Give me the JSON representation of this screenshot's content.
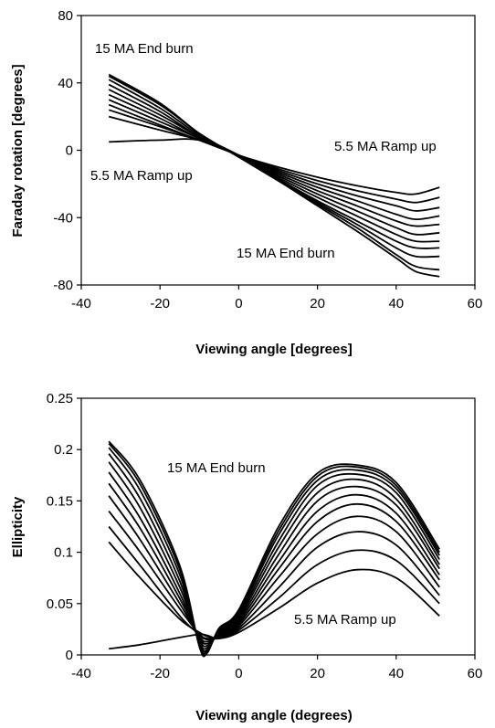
{
  "chart_data": [
    {
      "type": "line",
      "title": "",
      "xlabel": "Viewing angle [degrees]",
      "ylabel": "Faraday rotation [degrees]",
      "xlim": [
        -40,
        60
      ],
      "ylim": [
        -80,
        80
      ],
      "xticks": [
        -40,
        -20,
        0,
        20,
        40,
        60
      ],
      "yticks": [
        80,
        40,
        0,
        -40,
        -80
      ],
      "grid": false,
      "legend": "none",
      "annotations": [
        "15 MA End burn",
        "5.5 MA Ramp up",
        "5.5 MA Ramp up",
        "15 MA End burn"
      ],
      "series": [
        {
          "x": [
            -33,
            -20,
            -10,
            0,
            10,
            20,
            30,
            40,
            45,
            51
          ],
          "y": [
            5,
            6,
            6,
            -3,
            -10,
            -16,
            -21,
            -25,
            -26,
            -22
          ]
        },
        {
          "x": [
            -33,
            -20,
            -10,
            0,
            10,
            20,
            30,
            40,
            45,
            51
          ],
          "y": [
            20,
            12,
            6,
            -3,
            -11,
            -18,
            -24,
            -29,
            -31,
            -28
          ]
        },
        {
          "x": [
            -33,
            -20,
            -10,
            0,
            10,
            20,
            30,
            40,
            45,
            51
          ],
          "y": [
            24,
            14,
            6,
            -3,
            -12,
            -20,
            -27,
            -33,
            -36,
            -34
          ]
        },
        {
          "x": [
            -33,
            -20,
            -10,
            0,
            10,
            20,
            30,
            40,
            45,
            51
          ],
          "y": [
            27,
            15,
            6,
            -3,
            -13,
            -22,
            -30,
            -38,
            -41,
            -39
          ]
        },
        {
          "x": [
            -33,
            -20,
            -10,
            0,
            10,
            20,
            30,
            40,
            45,
            51
          ],
          "y": [
            30,
            17,
            7,
            -3,
            -14,
            -24,
            -33,
            -42,
            -45,
            -44
          ]
        },
        {
          "x": [
            -33,
            -20,
            -10,
            0,
            10,
            20,
            30,
            40,
            45,
            51
          ],
          "y": [
            33,
            19,
            7,
            -3,
            -15,
            -26,
            -36,
            -46,
            -50,
            -49
          ]
        },
        {
          "x": [
            -33,
            -20,
            -10,
            0,
            10,
            20,
            30,
            40,
            45,
            51
          ],
          "y": [
            36,
            21,
            8,
            -3,
            -16,
            -28,
            -39,
            -50,
            -54,
            -54
          ]
        },
        {
          "x": [
            -33,
            -20,
            -10,
            0,
            10,
            20,
            30,
            40,
            45,
            51
          ],
          "y": [
            39,
            23,
            8,
            -3,
            -17,
            -30,
            -42,
            -54,
            -58,
            -58
          ]
        },
        {
          "x": [
            -33,
            -20,
            -10,
            0,
            10,
            20,
            30,
            40,
            45,
            51
          ],
          "y": [
            42,
            25,
            9,
            -3,
            -17,
            -31,
            -44,
            -58,
            -63,
            -63
          ]
        },
        {
          "x": [
            -33,
            -20,
            -10,
            0,
            10,
            20,
            30,
            40,
            45,
            51
          ],
          "y": [
            44,
            27,
            10,
            -4,
            -18,
            -32,
            -46,
            -62,
            -69,
            -71
          ]
        },
        {
          "x": [
            -33,
            -20,
            -10,
            0,
            10,
            20,
            30,
            40,
            45,
            51
          ],
          "y": [
            45,
            28,
            10,
            -4,
            -18,
            -33,
            -48,
            -64,
            -72,
            -75
          ]
        }
      ]
    },
    {
      "type": "line",
      "title": "",
      "xlabel": "Viewing angle (degrees)",
      "ylabel": "Ellipticity",
      "xlim": [
        -40,
        60
      ],
      "ylim": [
        0,
        0.25
      ],
      "xticks": [
        -40,
        -20,
        0,
        20,
        40,
        60
      ],
      "yticks": [
        0.25,
        0.2,
        0.15,
        0.1,
        0.05,
        0
      ],
      "grid": false,
      "legend": "none",
      "annotations": [
        "15 MA End burn",
        "5.5 MA Ramp up"
      ],
      "series": [
        {
          "x": [
            -33,
            -25,
            -15,
            -10,
            -8,
            -5,
            0,
            10,
            20,
            30,
            40,
            51
          ],
          "y": [
            0.006,
            0.01,
            0.017,
            0.02,
            0.019,
            0.016,
            0.022,
            0.045,
            0.07,
            0.083,
            0.075,
            0.038
          ]
        },
        {
          "x": [
            -33,
            -25,
            -15,
            -10,
            -8,
            -5,
            0,
            10,
            20,
            30,
            40,
            51
          ],
          "y": [
            0.11,
            0.075,
            0.035,
            0.022,
            0.018,
            0.016,
            0.024,
            0.055,
            0.088,
            0.102,
            0.092,
            0.05
          ]
        },
        {
          "x": [
            -33,
            -25,
            -15,
            -10,
            -8,
            -5,
            0,
            10,
            20,
            30,
            40,
            51
          ],
          "y": [
            0.125,
            0.087,
            0.038,
            0.02,
            0.016,
            0.017,
            0.026,
            0.065,
            0.105,
            0.12,
            0.107,
            0.058
          ]
        },
        {
          "x": [
            -33,
            -25,
            -15,
            -10,
            -8,
            -5,
            0,
            10,
            20,
            30,
            40,
            51
          ],
          "y": [
            0.14,
            0.1,
            0.045,
            0.02,
            0.015,
            0.018,
            0.028,
            0.075,
            0.118,
            0.135,
            0.12,
            0.066
          ]
        },
        {
          "x": [
            -33,
            -25,
            -15,
            -10,
            -8,
            -5,
            0,
            10,
            20,
            30,
            40,
            51
          ],
          "y": [
            0.155,
            0.112,
            0.05,
            0.018,
            0.013,
            0.019,
            0.03,
            0.083,
            0.13,
            0.147,
            0.13,
            0.073
          ]
        },
        {
          "x": [
            -33,
            -25,
            -15,
            -10,
            -8,
            -5,
            0,
            10,
            20,
            30,
            40,
            51
          ],
          "y": [
            0.167,
            0.123,
            0.055,
            0.017,
            0.011,
            0.02,
            0.032,
            0.09,
            0.14,
            0.156,
            0.138,
            0.078
          ]
        },
        {
          "x": [
            -33,
            -25,
            -15,
            -10,
            -8,
            -5,
            0,
            10,
            20,
            30,
            40,
            51
          ],
          "y": [
            0.178,
            0.133,
            0.06,
            0.015,
            0.009,
            0.021,
            0.034,
            0.097,
            0.15,
            0.164,
            0.146,
            0.084
          ]
        },
        {
          "x": [
            -33,
            -25,
            -15,
            -10,
            -8,
            -5,
            0,
            10,
            20,
            30,
            40,
            51
          ],
          "y": [
            0.188,
            0.143,
            0.066,
            0.013,
            0.007,
            0.022,
            0.036,
            0.104,
            0.158,
            0.171,
            0.152,
            0.088
          ]
        },
        {
          "x": [
            -33,
            -25,
            -15,
            -10,
            -8,
            -5,
            0,
            10,
            20,
            30,
            40,
            51
          ],
          "y": [
            0.196,
            0.152,
            0.072,
            0.012,
            0.005,
            0.023,
            0.038,
            0.11,
            0.165,
            0.176,
            0.158,
            0.093
          ]
        },
        {
          "x": [
            -33,
            -25,
            -15,
            -10,
            -8,
            -5,
            0,
            10,
            20,
            30,
            40,
            51
          ],
          "y": [
            0.202,
            0.16,
            0.078,
            0.01,
            0.004,
            0.024,
            0.04,
            0.116,
            0.17,
            0.18,
            0.162,
            0.097
          ]
        },
        {
          "x": [
            -33,
            -25,
            -15,
            -10,
            -8,
            -5,
            0,
            10,
            20,
            30,
            40,
            51
          ],
          "y": [
            0.206,
            0.166,
            0.083,
            0.009,
            0.003,
            0.025,
            0.042,
            0.12,
            0.174,
            0.183,
            0.165,
            0.1
          ]
        },
        {
          "x": [
            -33,
            -25,
            -15,
            -10,
            -8,
            -5,
            0,
            10,
            20,
            30,
            40,
            51
          ],
          "y": [
            0.208,
            0.17,
            0.087,
            0.008,
            0.002,
            0.026,
            0.044,
            0.124,
            0.177,
            0.185,
            0.168,
            0.103
          ]
        }
      ]
    }
  ]
}
